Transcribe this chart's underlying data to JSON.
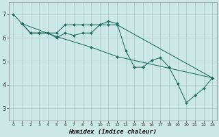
{
  "xlabel": "Humidex (Indice chaleur)",
  "background_color": "#cce8e4",
  "grid_color": "#aaccca",
  "line_color": "#1a6b5a",
  "xlim": [
    -0.5,
    23.5
  ],
  "ylim": [
    2.5,
    7.5
  ],
  "yticks": [
    3,
    4,
    5,
    6,
    7
  ],
  "xticks": [
    0,
    1,
    2,
    3,
    4,
    5,
    6,
    7,
    8,
    9,
    10,
    11,
    12,
    13,
    14,
    15,
    16,
    17,
    18,
    19,
    20,
    21,
    22,
    23
  ],
  "series1": [
    [
      0,
      7.0
    ],
    [
      1,
      6.6
    ],
    [
      2,
      6.2
    ],
    [
      3,
      6.2
    ],
    [
      4,
      6.2
    ],
    [
      5,
      6.0
    ],
    [
      6,
      6.2
    ],
    [
      7,
      6.1
    ],
    [
      8,
      6.2
    ],
    [
      9,
      6.2
    ],
    [
      10,
      6.55
    ],
    [
      11,
      6.7
    ],
    [
      12,
      6.6
    ],
    [
      13,
      5.45
    ],
    [
      14,
      4.75
    ],
    [
      15,
      4.75
    ],
    [
      16,
      5.05
    ],
    [
      17,
      5.15
    ],
    [
      18,
      4.75
    ],
    [
      19,
      4.05
    ],
    [
      20,
      3.25
    ],
    [
      21,
      3.55
    ],
    [
      22,
      3.85
    ],
    [
      23,
      4.3
    ]
  ],
  "series2": [
    [
      1,
      6.6
    ],
    [
      2,
      6.2
    ],
    [
      3,
      6.2
    ],
    [
      4,
      6.2
    ],
    [
      5,
      6.2
    ],
    [
      6,
      6.55
    ],
    [
      7,
      6.55
    ],
    [
      8,
      6.55
    ],
    [
      9,
      6.55
    ],
    [
      10,
      6.55
    ],
    [
      11,
      6.55
    ],
    [
      12,
      6.55
    ],
    [
      23,
      4.3
    ]
  ],
  "series3": [
    [
      1,
      6.6
    ],
    [
      5,
      6.05
    ],
    [
      9,
      5.6
    ],
    [
      12,
      5.2
    ],
    [
      23,
      4.3
    ]
  ]
}
